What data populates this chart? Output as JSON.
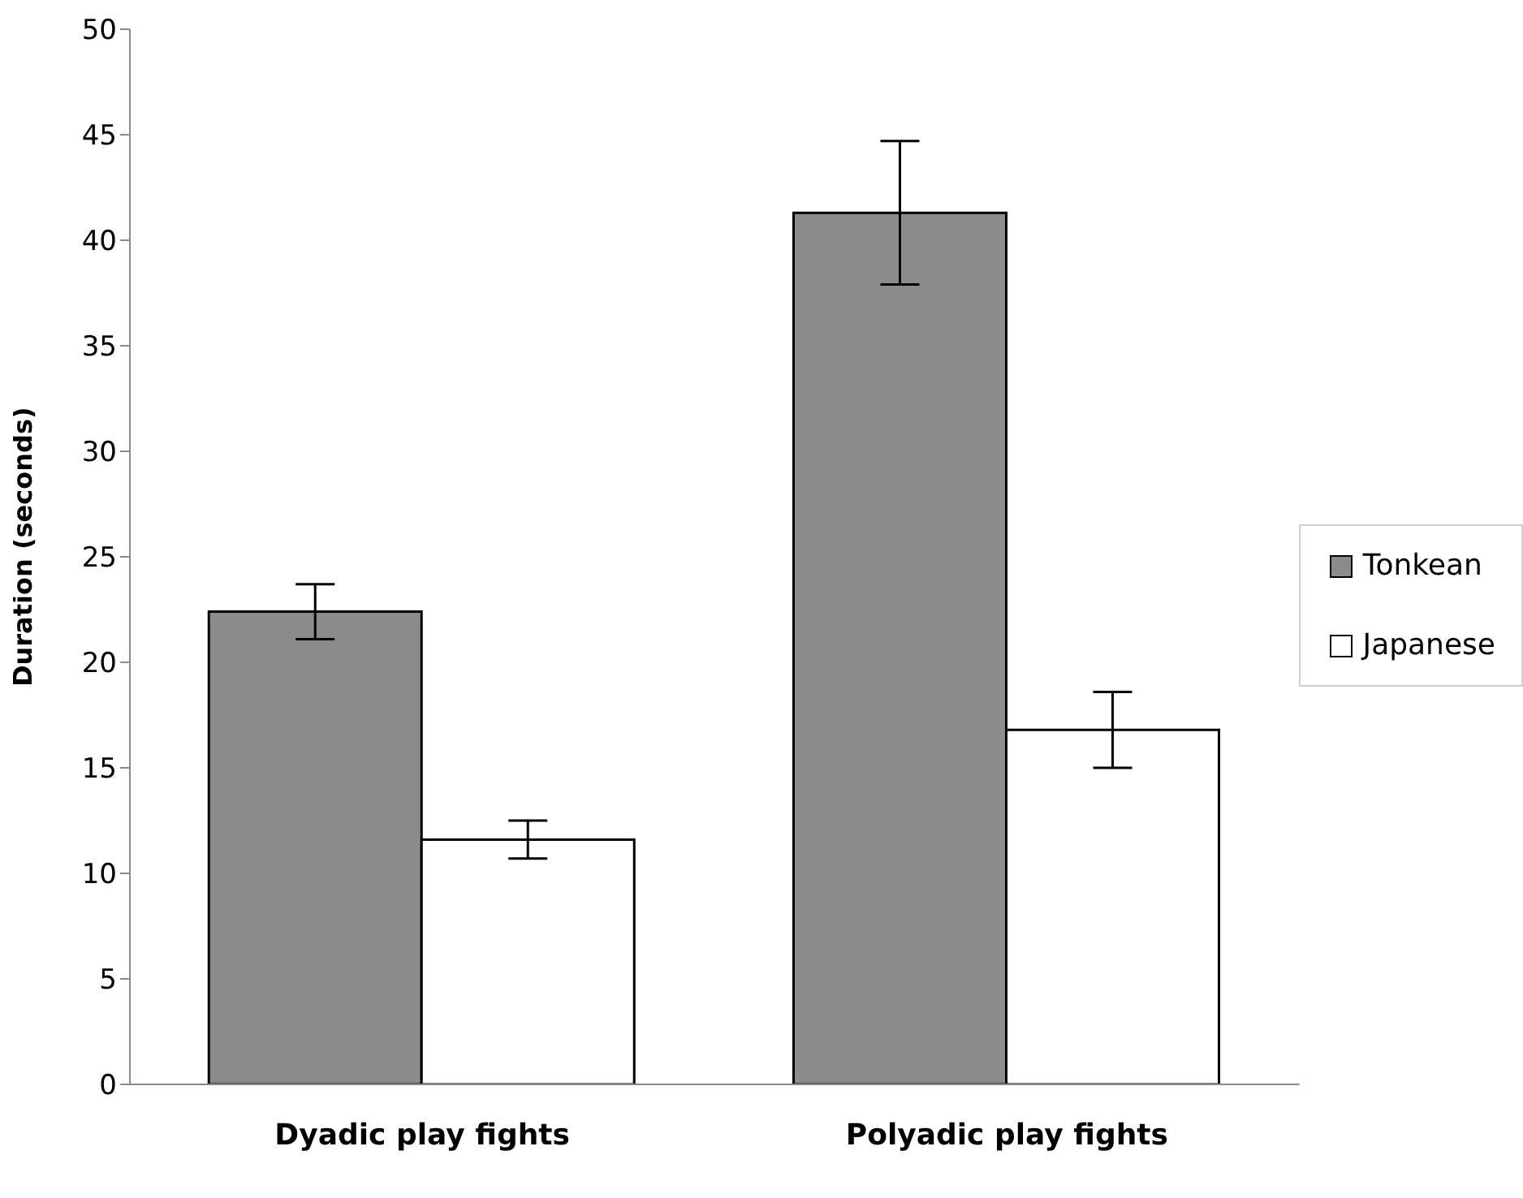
{
  "chart_data": {
    "type": "bar",
    "ylabel": "Duration (seconds)",
    "categories": [
      "Dyadic play fights",
      "Polyadic play fights"
    ],
    "series": [
      {
        "name": "Tonkean",
        "color": "#8c8c8c",
        "values": [
          22.4,
          41.3
        ],
        "errors": [
          1.3,
          3.4
        ]
      },
      {
        "name": "Japanese",
        "color": "#ffffff",
        "values": [
          11.6,
          16.8
        ],
        "errors": [
          0.9,
          1.8
        ]
      }
    ],
    "ylim": [
      0,
      50
    ],
    "yticks": [
      0,
      5,
      10,
      15,
      20,
      25,
      30,
      35,
      40,
      45,
      50
    ],
    "grid": false,
    "legend": "right"
  }
}
